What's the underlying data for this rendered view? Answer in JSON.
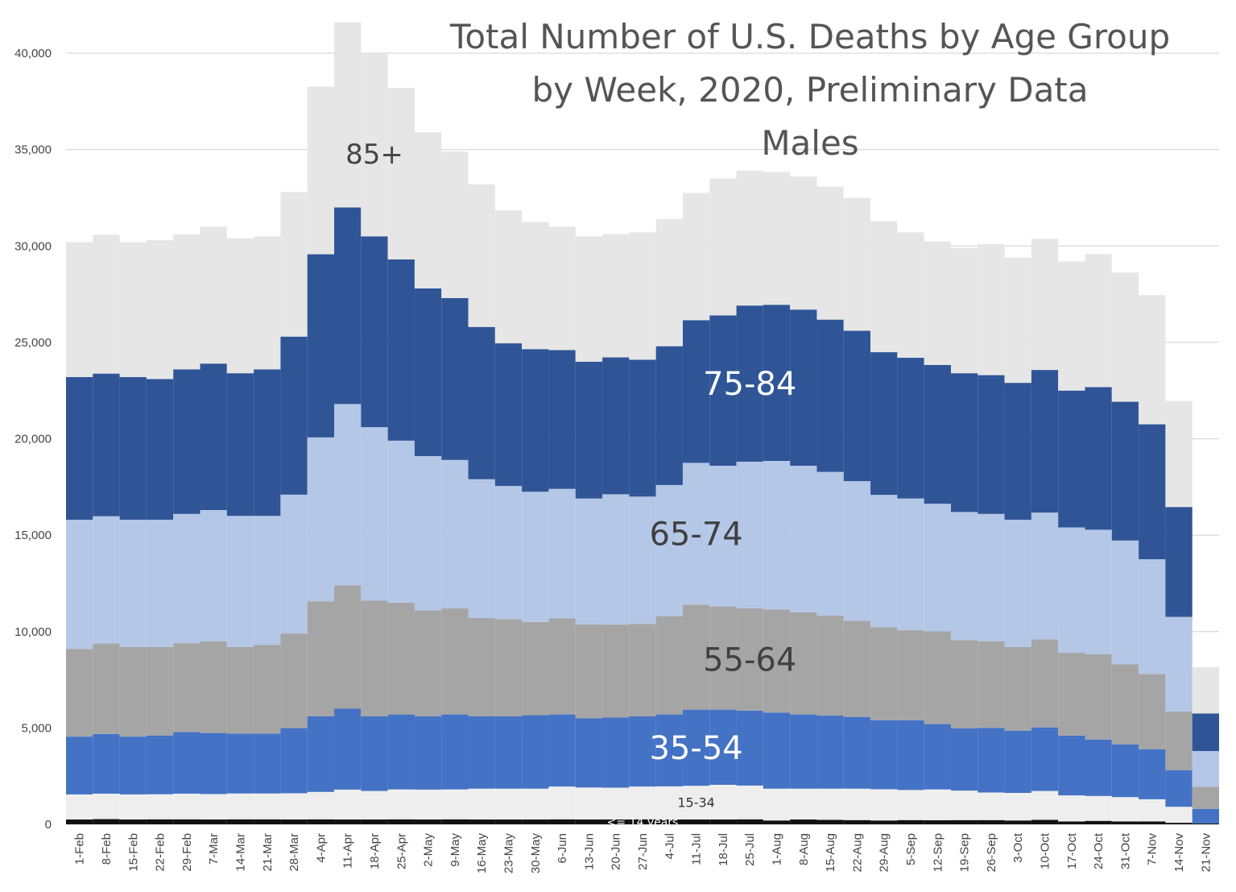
{
  "chart_data": {
    "type": "area",
    "stacked": true,
    "step": true,
    "title_lines": [
      "Total Number of U.S. Deaths by Age Group",
      "by Week, 2020, Preliminary Data",
      "Males"
    ],
    "ylim": [
      0,
      42000
    ],
    "yticks": [
      0,
      5000,
      10000,
      15000,
      20000,
      25000,
      30000,
      35000,
      40000
    ],
    "ytick_labels": [
      "0",
      "5,000",
      "10,000",
      "15,000",
      "20,000",
      "25,000",
      "30,000",
      "35,000",
      "40,000"
    ],
    "grid": true,
    "categories": [
      "1-Feb",
      "8-Feb",
      "15-Feb",
      "22-Feb",
      "29-Feb",
      "7-Mar",
      "14-Mar",
      "21-Mar",
      "28-Mar",
      "4-Apr",
      "11-Apr",
      "18-Apr",
      "25-Apr",
      "2-May",
      "9-May",
      "16-May",
      "23-May",
      "30-May",
      "6-Jun",
      "13-Jun",
      "20-Jun",
      "27-Jun",
      "4-Jul",
      "11-Jul",
      "18-Jul",
      "25-Jul",
      "1-Aug",
      "8-Aug",
      "15-Aug",
      "22-Aug",
      "29-Aug",
      "5-Sep",
      "12-Sep",
      "19-Sep",
      "26-Sep",
      "3-Oct",
      "10-Oct",
      "17-Oct",
      "24-Oct",
      "31-Oct",
      "7-Nov",
      "14-Nov",
      "21-Nov"
    ],
    "series": [
      {
        "name": "<= 14 years",
        "color": "#111111",
        "values": [
          250,
          270,
          250,
          260,
          260,
          250,
          260,
          260,
          250,
          260,
          250,
          250,
          260,
          250,
          260,
          250,
          250,
          250,
          260,
          250,
          250,
          260,
          250,
          250,
          250,
          260,
          200,
          250,
          230,
          220,
          200,
          220,
          210,
          220,
          220,
          200,
          230,
          150,
          180,
          150,
          150,
          80,
          50
        ]
      },
      {
        "name": "15-34",
        "color": "#eeeeee",
        "values": [
          1300,
          1320,
          1300,
          1300,
          1330,
          1320,
          1340,
          1340,
          1360,
          1420,
          1550,
          1480,
          1550,
          1550,
          1550,
          1600,
          1600,
          1600,
          1700,
          1660,
          1650,
          1700,
          1720,
          1750,
          1800,
          1750,
          1650,
          1600,
          1620,
          1630,
          1620,
          1560,
          1600,
          1530,
          1430,
          1430,
          1500,
          1350,
          1290,
          1260,
          1150,
          830,
          0
        ]
      },
      {
        "name": "35-54",
        "color": "#4472c4",
        "values": [
          3000,
          3100,
          3000,
          3050,
          3200,
          3170,
          3110,
          3110,
          3380,
          3920,
          4200,
          3870,
          3890,
          3800,
          3890,
          3750,
          3750,
          3810,
          3740,
          3590,
          3640,
          3640,
          3730,
          3950,
          3900,
          3890,
          3950,
          3850,
          3790,
          3720,
          3580,
          3620,
          3390,
          3230,
          3350,
          3220,
          3300,
          3100,
          2930,
          2740,
          2600,
          1900,
          750
        ]
      },
      {
        "name": "55-64",
        "color": "#a5a5a5",
        "values": [
          4550,
          4690,
          4650,
          4590,
          4610,
          4760,
          4490,
          4590,
          4910,
          5970,
          6400,
          6000,
          5800,
          5500,
          5500,
          5100,
          5050,
          4840,
          4980,
          4870,
          4820,
          4800,
          5100,
          5450,
          5350,
          5310,
          5350,
          5300,
          5190,
          4990,
          4820,
          4670,
          4810,
          4580,
          4500,
          4350,
          4570,
          4300,
          4420,
          4150,
          3900,
          3050,
          1150
        ]
      },
      {
        "name": "65-74",
        "color": "#b4c7e7",
        "values": [
          6700,
          6600,
          6600,
          6600,
          6700,
          6800,
          6800,
          6700,
          7200,
          8500,
          9400,
          9000,
          8400,
          8000,
          7700,
          7200,
          6900,
          6750,
          6720,
          6530,
          6760,
          6600,
          6800,
          7350,
          7300,
          7600,
          7700,
          7600,
          7450,
          7240,
          6870,
          6830,
          6620,
          6640,
          6600,
          6600,
          6570,
          6500,
          6460,
          6420,
          5950,
          4900,
          1850
        ]
      },
      {
        "name": "75-84",
        "color": "#2f5597",
        "values": [
          7400,
          7400,
          7400,
          7300,
          7500,
          7600,
          7400,
          7600,
          8200,
          9500,
          10200,
          9900,
          9400,
          8700,
          8400,
          7900,
          7400,
          7400,
          7200,
          7100,
          7100,
          7100,
          7200,
          7400,
          7800,
          8100,
          8100,
          8100,
          7900,
          7800,
          7400,
          7300,
          7200,
          7200,
          7200,
          7100,
          7400,
          7100,
          7400,
          7200,
          7000,
          5700,
          1950
        ]
      },
      {
        "name": "85+",
        "color": "#e7e6e6",
        "values": [
          7000,
          7200,
          7000,
          7200,
          7000,
          7100,
          7000,
          6900,
          7500,
          8700,
          9600,
          9500,
          8900,
          8100,
          7600,
          7400,
          6900,
          6600,
          6400,
          6500,
          6400,
          6600,
          6600,
          6600,
          7100,
          7000,
          6900,
          6900,
          6900,
          6900,
          6800,
          6500,
          6400,
          6500,
          6800,
          6500,
          6800,
          6700,
          6900,
          6700,
          6700,
          5500,
          2400
        ]
      }
    ],
    "in_chart_labels": [
      {
        "series": "85+",
        "text": "85+"
      },
      {
        "series": "75-84",
        "text": "75-84"
      },
      {
        "series": "65-74",
        "text": "65-74"
      },
      {
        "series": "55-64",
        "text": "55-64"
      },
      {
        "series": "35-54",
        "text": "35-54"
      },
      {
        "series": "15-34",
        "text": "15-34"
      },
      {
        "series": "<= 14 years",
        "text": "<= 14 years"
      }
    ]
  }
}
